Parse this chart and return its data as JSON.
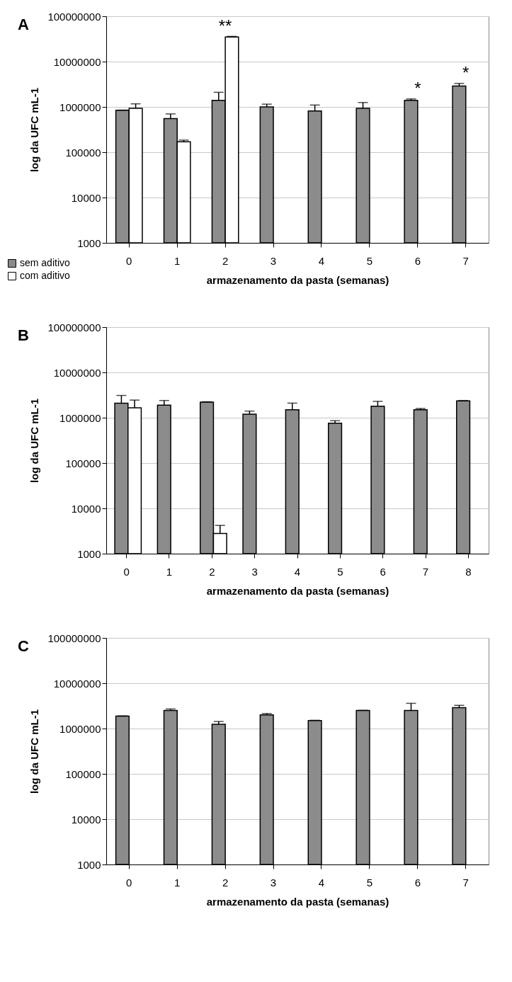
{
  "chart_data": [
    {
      "type": "bar",
      "title": "A",
      "xlabel": "armazenamento da pasta (semanas)",
      "ylabel": "log da UFC mL-1",
      "categories": [
        "0",
        "1",
        "2",
        "3",
        "4",
        "5",
        "6",
        "7"
      ],
      "log": true,
      "ylim": [
        1000,
        100000000
      ],
      "yticks": [
        1000,
        10000,
        100000,
        1000000,
        10000000,
        100000000
      ],
      "grid": "y",
      "legend": "bottom left",
      "series": [
        {
          "name": "sem aditivo",
          "color": "#8c8c8c",
          "values": [
            840000,
            550000,
            1400000,
            1000000,
            810000,
            930000,
            1400000,
            2900000
          ],
          "errors": [
            [
              840000,
              850000
            ],
            [
              550000,
              700000
            ],
            [
              1400000,
              2100000
            ],
            [
              1000000,
              1150000
            ],
            [
              810000,
              1100000
            ],
            [
              930000,
              1250000
            ],
            [
              1400000,
              1500000
            ],
            [
              2900000,
              3300000
            ]
          ]
        },
        {
          "name": "com aditivo",
          "color": "#ffffff",
          "values": [
            930000,
            170000,
            35000000,
            null,
            null,
            null,
            null,
            null
          ],
          "errors": [
            [
              930000,
              1170000
            ],
            [
              170000,
              185000
            ],
            [
              35000000,
              36000000
            ],
            null,
            null,
            null,
            null,
            null
          ]
        }
      ],
      "annotations": [
        {
          "text": "**",
          "x": "2",
          "y": 35000000
        },
        {
          "text": "*",
          "x": "6",
          "y": 1500000
        },
        {
          "text": "*",
          "x": "7",
          "y": 3300000
        }
      ]
    },
    {
      "type": "bar",
      "title": "B",
      "xlabel": "armazenamento da pasta (semanas)",
      "ylabel": "log da UFC mL-1",
      "categories": [
        "0",
        "1",
        "2",
        "3",
        "4",
        "5",
        "6",
        "7",
        "8"
      ],
      "log": true,
      "ylim": [
        1000,
        100000000
      ],
      "yticks": [
        1000,
        10000,
        100000,
        1000000,
        10000000,
        100000000
      ],
      "grid": "y",
      "legend": "bottom left",
      "series": [
        {
          "name": "sem aditivo",
          "color": "#8c8c8c",
          "values": [
            2100000,
            1900000,
            2200000,
            1200000,
            1500000,
            760000,
            1800000,
            1500000,
            2350000
          ],
          "errors": [
            [
              2100000,
              3100000
            ],
            [
              1900000,
              2400000
            ],
            [
              2200000,
              2250000
            ],
            [
              1200000,
              1400000
            ],
            [
              1500000,
              2100000
            ],
            [
              760000,
              860000
            ],
            [
              1800000,
              2300000
            ],
            [
              1500000,
              1600000
            ],
            [
              2350000,
              2400000
            ]
          ]
        },
        {
          "name": "com aditivo",
          "color": "#ffffff",
          "values": [
            1650000,
            null,
            2800,
            null,
            null,
            null,
            null,
            null,
            null
          ],
          "errors": [
            [
              1650000,
              2450000
            ],
            null,
            [
              2800,
              4200
            ],
            null,
            null,
            null,
            null,
            null,
            null
          ]
        }
      ]
    },
    {
      "type": "bar",
      "title": "C",
      "xlabel": "armazenamento da pasta (semanas)",
      "ylabel": "log da UFC mL-1",
      "categories": [
        "0",
        "1",
        "2",
        "3",
        "4",
        "5",
        "6",
        "7"
      ],
      "log": true,
      "ylim": [
        1000,
        100000000
      ],
      "yticks": [
        1000,
        10000,
        100000,
        1000000,
        10000000,
        100000000
      ],
      "grid": "y",
      "legend": "bottom left",
      "series": [
        {
          "name": "sem aditivo",
          "color": "#8c8c8c",
          "values": [
            1870000,
            2500000,
            1240000,
            2000000,
            1500000,
            2500000,
            2500000,
            2900000
          ],
          "errors": [
            [
              1870000,
              1900000
            ],
            [
              2500000,
              2700000
            ],
            [
              1240000,
              1430000
            ],
            [
              2000000,
              2150000
            ],
            [
              1500000,
              1520000
            ],
            [
              2500000,
              2520000
            ],
            [
              2500000,
              3600000
            ],
            [
              2900000,
              3250000
            ]
          ]
        }
      ]
    }
  ]
}
